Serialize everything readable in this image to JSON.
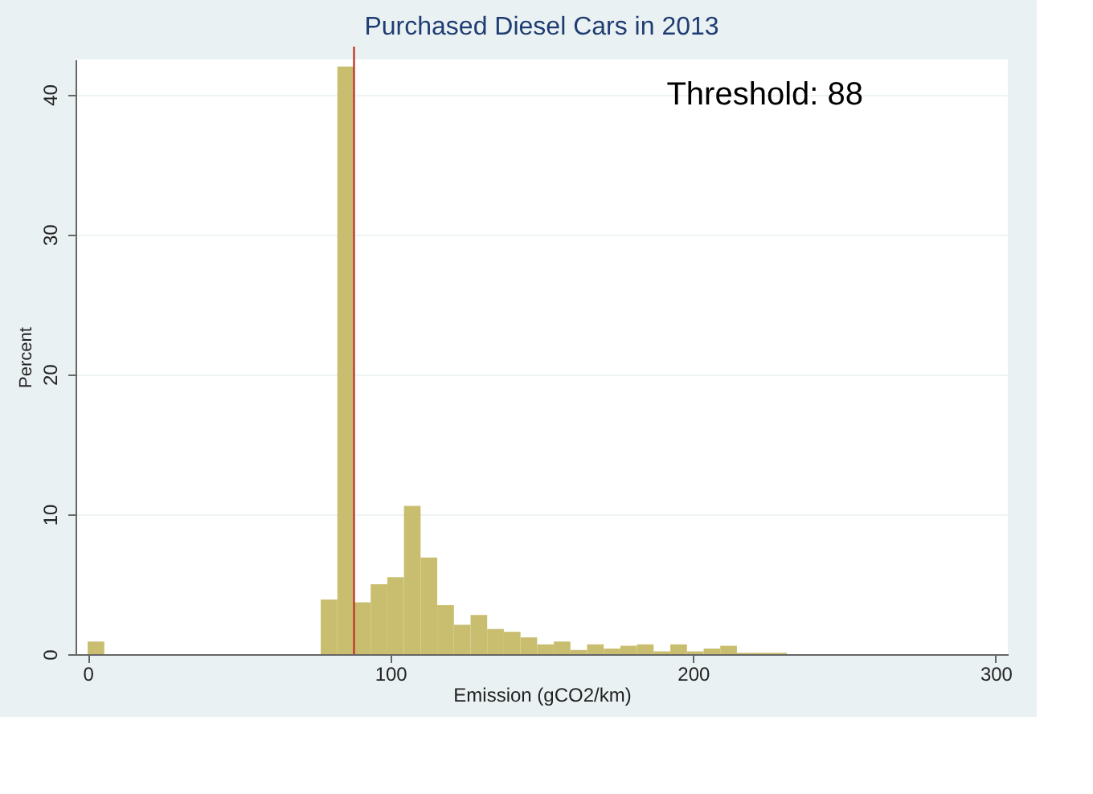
{
  "chart_data": {
    "type": "histogram",
    "title": "Purchased Diesel Cars in 2013",
    "xlabel": "Emission (gCO2/km)",
    "ylabel": "Percent",
    "bins": [
      0,
      5.5,
      11,
      16.5,
      22,
      27.5,
      33,
      38.5,
      44,
      49.5,
      55,
      60.5,
      66,
      71.5,
      77,
      82.5,
      88,
      93.5,
      99,
      104.5,
      110,
      115.5,
      121,
      126.5,
      132,
      137.5,
      143,
      148.5,
      154,
      159.5,
      165,
      170.5,
      176,
      181.5,
      187,
      192.5,
      198,
      203.5,
      209,
      214.5,
      220,
      225.5,
      231
    ],
    "values": [
      0.9,
      0,
      0,
      0,
      0,
      0,
      0,
      0,
      0,
      0,
      0,
      0,
      0,
      0,
      3.9,
      42,
      3.7,
      5.0,
      5.5,
      10.6,
      6.9,
      3.5,
      2.1,
      2.8,
      1.8,
      1.6,
      1.2,
      0.7,
      0.9,
      0.3,
      0.7,
      0.4,
      0.6,
      0.7,
      0.2,
      0.7,
      0.2,
      0.4,
      0.6,
      0.1,
      0.1,
      0.1
    ],
    "color": "#c9be6f",
    "xlim": [
      -4,
      304
    ],
    "ylim": [
      0,
      42.5
    ],
    "xticks": [
      0,
      100,
      200,
      300
    ],
    "yticks": [
      0,
      10,
      20,
      30,
      40
    ],
    "grid": "y",
    "annotations": [
      "Threshold: 88"
    ],
    "ref_lines": [
      {
        "axis": "x",
        "value": 88,
        "color": "#c0392b"
      }
    ]
  }
}
